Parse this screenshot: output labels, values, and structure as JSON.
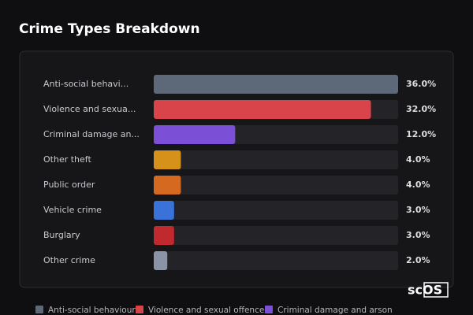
{
  "chart_data": {
    "type": "bar",
    "orientation": "horizontal",
    "title": "Crime Types Breakdown",
    "categories": [
      "Anti-social behavi...",
      "Violence and sexua...",
      "Criminal damage an...",
      "Other theft",
      "Public order",
      "Vehicle crime",
      "Burglary",
      "Other crime"
    ],
    "values": [
      36.0,
      32.0,
      12.0,
      4.0,
      4.0,
      3.0,
      3.0,
      2.0
    ],
    "value_labels": [
      "36.0%",
      "32.0%",
      "12.0%",
      "4.0%",
      "4.0%",
      "3.0%",
      "3.0%",
      "2.0%"
    ],
    "colors": [
      "#5d6879",
      "#d9434a",
      "#7b4fd6",
      "#d6911a",
      "#d4691f",
      "#3b72d9",
      "#c0292d",
      "#8b94a6"
    ],
    "legend": [
      {
        "name": "Anti-social behaviour",
        "color": "#5d6879"
      },
      {
        "name": "Violence and sexual offences",
        "color": "#d9434a"
      },
      {
        "name": "Criminal damage and arson",
        "color": "#7b4fd6"
      }
    ],
    "logo": "scOS"
  }
}
